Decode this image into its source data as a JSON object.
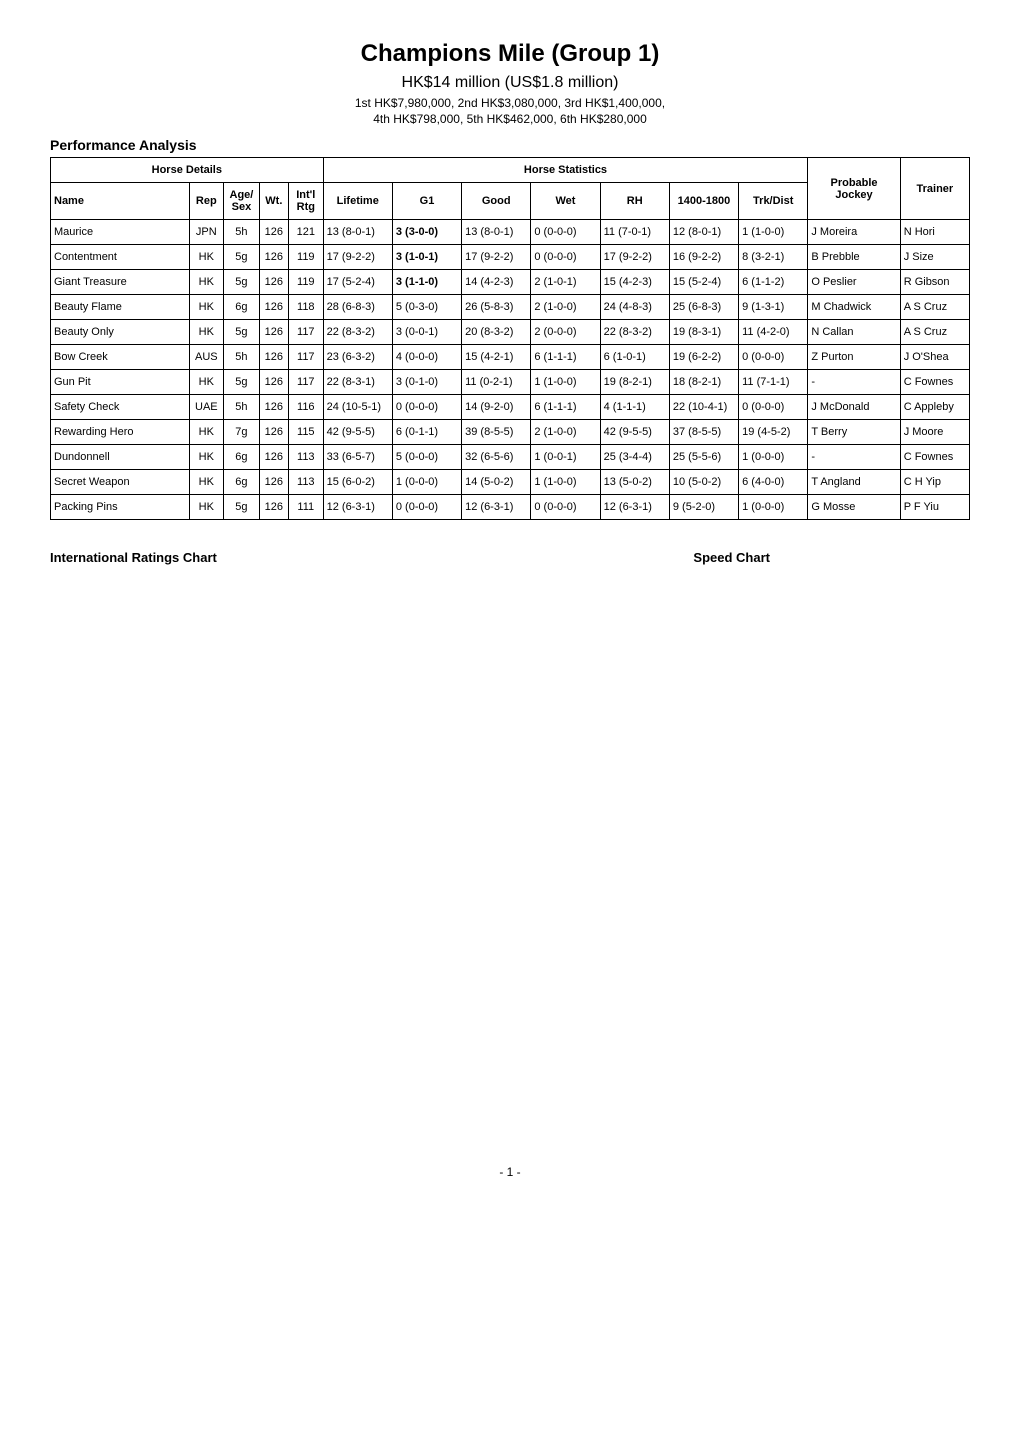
{
  "header": {
    "title": "Champions Mile (Group 1)",
    "subtitle": "HK$14 million (US$1.8 million)",
    "prize_line1": "1st HK$7,980,000, 2nd HK$3,080,000, 3rd HK$1,400,000,",
    "prize_line2": "4th HK$798,000, 5th HK$462,000, 6th HK$280,000"
  },
  "section_label": "Performance Analysis",
  "table": {
    "group_headers": {
      "horse_details": "Horse Details",
      "horse_statistics": "Horse Statistics",
      "probable_jockey": "Probable Jockey",
      "trainer": "Trainer"
    },
    "columns": {
      "name": "Name",
      "rep": "Rep",
      "age_sex": "Age/ Sex",
      "wt": "Wt.",
      "intl_rtg": "Int'l Rtg",
      "lifetime": "Lifetime",
      "g1": "G1",
      "good": "Good",
      "wet": "Wet",
      "rh": "RH",
      "r1400_1800": "1400-1800",
      "trk_dist": "Trk/Dist"
    },
    "rows": [
      {
        "name": "Maurice",
        "rep": "JPN",
        "age": "5h",
        "wt": "126",
        "rtg": "121",
        "lifetime": "13 (8-0-1)",
        "g1": "3 (3-0-0)",
        "g1_bold": true,
        "good": "13 (8-0-1)",
        "wet": "0 (0-0-0)",
        "rh": "11 (7-0-1)",
        "r1400": "12 (8-0-1)",
        "trkdist": "1 (1-0-0)",
        "jockey": "J Moreira",
        "trainer": "N Hori"
      },
      {
        "name": "Contentment",
        "rep": "HK",
        "age": "5g",
        "wt": "126",
        "rtg": "119",
        "lifetime": "17 (9-2-2)",
        "g1": "3 (1-0-1)",
        "g1_bold": true,
        "good": "17 (9-2-2)",
        "wet": "0 (0-0-0)",
        "rh": "17 (9-2-2)",
        "r1400": "16 (9-2-2)",
        "trkdist": "8 (3-2-1)",
        "jockey": "B Prebble",
        "trainer": "J Size"
      },
      {
        "name": "Giant Treasure",
        "rep": "HK",
        "age": "5g",
        "wt": "126",
        "rtg": "119",
        "lifetime": "17 (5-2-4)",
        "g1": "3 (1-1-0)",
        "g1_bold": true,
        "good": "14 (4-2-3)",
        "wet": "2 (1-0-1)",
        "rh": "15 (4-2-3)",
        "r1400": "15 (5-2-4)",
        "trkdist": "6 (1-1-2)",
        "jockey": "O Peslier",
        "trainer": "R Gibson"
      },
      {
        "name": "Beauty Flame",
        "rep": "HK",
        "age": "6g",
        "wt": "126",
        "rtg": "118",
        "lifetime": "28 (6-8-3)",
        "g1": "5 (0-3-0)",
        "g1_bold": false,
        "good": "26 (5-8-3)",
        "wet": "2 (1-0-0)",
        "rh": "24 (4-8-3)",
        "r1400": "25 (6-8-3)",
        "trkdist": "9 (1-3-1)",
        "jockey": "M Chadwick",
        "trainer": "A S Cruz"
      },
      {
        "name": "Beauty Only",
        "rep": "HK",
        "age": "5g",
        "wt": "126",
        "rtg": "117",
        "lifetime": "22 (8-3-2)",
        "g1": "3 (0-0-1)",
        "g1_bold": false,
        "good": "20 (8-3-2)",
        "wet": "2 (0-0-0)",
        "rh": "22 (8-3-2)",
        "r1400": "19 (8-3-1)",
        "trkdist": "11 (4-2-0)",
        "jockey": "N Callan",
        "trainer": "A S Cruz"
      },
      {
        "name": "Bow Creek",
        "rep": "AUS",
        "age": "5h",
        "wt": "126",
        "rtg": "117",
        "lifetime": "23 (6-3-2)",
        "g1": "4 (0-0-0)",
        "g1_bold": false,
        "good": "15 (4-2-1)",
        "wet": "6 (1-1-1)",
        "rh": "6 (1-0-1)",
        "r1400": "19 (6-2-2)",
        "trkdist": "0 (0-0-0)",
        "jockey": "Z Purton",
        "trainer": "J O'Shea"
      },
      {
        "name": "Gun Pit",
        "rep": "HK",
        "age": "5g",
        "wt": "126",
        "rtg": "117",
        "lifetime": "22 (8-3-1)",
        "g1": "3 (0-1-0)",
        "g1_bold": false,
        "good": "11 (0-2-1)",
        "wet": "1 (1-0-0)",
        "rh": "19 (8-2-1)",
        "r1400": "18 (8-2-1)",
        "trkdist": "11 (7-1-1)",
        "jockey": "-",
        "trainer": "C Fownes"
      },
      {
        "name": "Safety Check",
        "rep": "UAE",
        "age": "5h",
        "wt": "126",
        "rtg": "116",
        "lifetime": "24 (10-5-1)",
        "g1": "0 (0-0-0)",
        "g1_bold": false,
        "good": "14 (9-2-0)",
        "wet": "6 (1-1-1)",
        "rh": "4 (1-1-1)",
        "r1400": "22 (10-4-1)",
        "trkdist": "0 (0-0-0)",
        "jockey": "J McDonald",
        "trainer": "C Appleby"
      },
      {
        "name": "Rewarding Hero",
        "rep": "HK",
        "age": "7g",
        "wt": "126",
        "rtg": "115",
        "lifetime": "42 (9-5-5)",
        "g1": "6 (0-1-1)",
        "g1_bold": false,
        "good": "39 (8-5-5)",
        "wet": "2 (1-0-0)",
        "rh": "42 (9-5-5)",
        "r1400": "37 (8-5-5)",
        "trkdist": "19 (4-5-2)",
        "jockey": "T Berry",
        "trainer": "J Moore"
      },
      {
        "name": "Dundonnell",
        "rep": "HK",
        "age": "6g",
        "wt": "126",
        "rtg": "113",
        "lifetime": "33 (6-5-7)",
        "g1": "5 (0-0-0)",
        "g1_bold": false,
        "good": "32 (6-5-6)",
        "wet": "1 (0-0-1)",
        "rh": "25 (3-4-4)",
        "r1400": "25 (5-5-6)",
        "trkdist": "1 (0-0-0)",
        "jockey": "-",
        "trainer": "C Fownes"
      },
      {
        "name": "Secret Weapon",
        "rep": "HK",
        "age": "6g",
        "wt": "126",
        "rtg": "113",
        "lifetime": "15 (6-0-2)",
        "g1": "1 (0-0-0)",
        "g1_bold": false,
        "good": "14 (5-0-2)",
        "wet": "1 (1-0-0)",
        "rh": "13 (5-0-2)",
        "r1400": "10 (5-0-2)",
        "trkdist": "6 (4-0-0)",
        "jockey": "T Angland",
        "trainer": "C H Yip"
      },
      {
        "name": "Packing Pins",
        "rep": "HK",
        "age": "5g",
        "wt": "126",
        "rtg": "111",
        "lifetime": "12 (6-3-1)",
        "g1": "0 (0-0-0)",
        "g1_bold": false,
        "good": "12 (6-3-1)",
        "wet": "0 (0-0-0)",
        "rh": "12 (6-3-1)",
        "r1400": "9 (5-2-0)",
        "trkdist": "1 (0-0-0)",
        "jockey": "G Mosse",
        "trainer": "P F Yiu"
      }
    ]
  },
  "charts": {
    "ratings_heading": "International Ratings Chart",
    "speed_heading": "Speed Chart"
  },
  "page_number": "- 1 -"
}
